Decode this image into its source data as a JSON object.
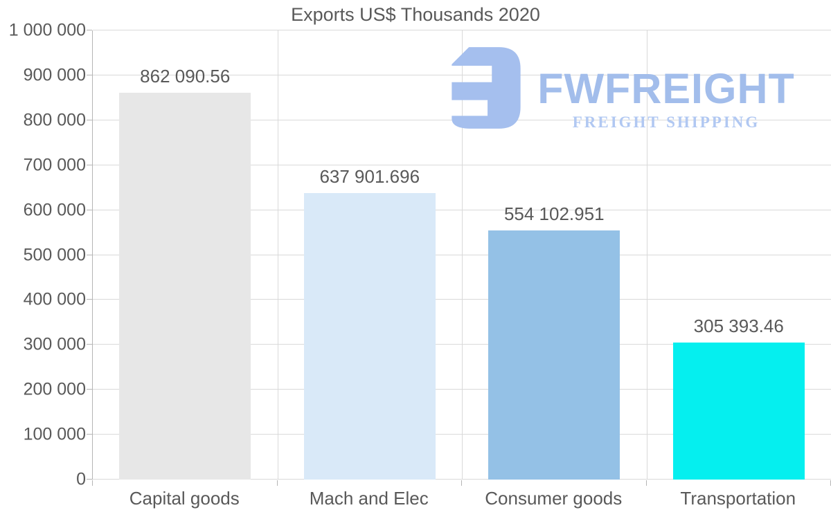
{
  "logo": {
    "brand": "FWFREIGHT",
    "tagline": "FREIGHT SHIPPING",
    "mark_color": "#a5bfee",
    "brand_color": "#a2bdeb",
    "tagline_color": "#b1c8f2"
  },
  "chart_data": {
    "type": "bar",
    "title": "Exports US$ Thousands 2020",
    "categories": [
      "Capital goods",
      "Mach and Elec",
      "Consumer goods",
      "Transportation"
    ],
    "values": [
      862090.56,
      637901.696,
      554102.951,
      305393.46
    ],
    "value_labels": [
      "862 090.56",
      "637 901.696",
      "554 102.951",
      "305 393.46"
    ],
    "bar_colors": [
      "#e7e7e7",
      "#d9e9f8",
      "#94c1e6",
      "#05efef"
    ],
    "ylim": [
      0,
      1000000
    ],
    "ytick_step": 100000,
    "ytick_labels": [
      "0",
      "100 000",
      "200 000",
      "300 000",
      "400 000",
      "500 000",
      "600 000",
      "700 000",
      "800 000",
      "900 000",
      "1 000 000"
    ],
    "grid": true,
    "legend": "none",
    "text_color": "#595959",
    "gridline_color": "#d9d9d9",
    "axis_color": "#b4b4b4"
  }
}
